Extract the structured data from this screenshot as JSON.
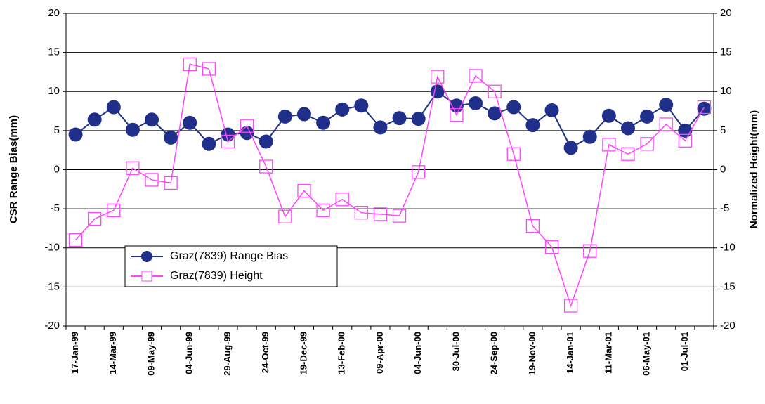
{
  "chart_data": {
    "type": "line",
    "y_label": "CSR Range Bias(mm)",
    "y2_label": "Normalized Height(mm)",
    "categories": [
      "17-Jan-99",
      null,
      "14-Mar-99",
      null,
      "09-May-99",
      null,
      "04-Jun-99",
      null,
      "29-Aug-99",
      null,
      "24-Oct-99",
      null,
      "19-Dec-99",
      null,
      "13-Feb-00",
      null,
      "09-Apr-00",
      null,
      "04-Jun-00",
      null,
      "30-Jul-00",
      null,
      "24-Sep-00",
      null,
      "19-Nov-00",
      null,
      "14-Jan-01",
      null,
      "11-Mar-01",
      null,
      "06-May-01",
      null,
      "01-Jul-01",
      null
    ],
    "series": [
      {
        "name": "Graz(7839) Range Bias",
        "color": "#1f2f8a",
        "marker": "circle",
        "values": [
          4.5,
          6.4,
          8.0,
          5.1,
          6.4,
          4.1,
          6.0,
          3.3,
          4.5,
          4.7,
          3.6,
          6.8,
          7.1,
          6.0,
          7.7,
          8.2,
          5.4,
          6.6,
          6.5,
          10.0,
          8.2,
          8.5,
          7.2,
          8.0,
          5.7,
          7.6,
          2.8,
          4.2,
          6.9,
          5.3,
          6.8,
          8.3,
          5.0,
          7.8
        ]
      },
      {
        "name": "Graz(7839) Height",
        "color": "#ff44ff",
        "marker": "square",
        "axis": "y2",
        "values": [
          -9.0,
          -6.3,
          -5.2,
          0.2,
          -1.3,
          -1.7,
          13.5,
          12.9,
          3.6,
          5.6,
          0.4,
          -6.0,
          -2.7,
          -5.2,
          -3.8,
          -5.5,
          -5.7,
          -5.9,
          -0.3,
          11.9,
          7.0,
          12.0,
          10.0,
          2.0,
          -7.2,
          -9.9,
          -17.4,
          -10.4,
          3.2,
          2.0,
          3.3,
          5.8,
          3.7,
          8.0
        ]
      }
    ],
    "ylim": [
      -20,
      20
    ],
    "yticks": [
      -20,
      -15,
      -10,
      -5,
      0,
      5,
      10,
      15,
      20
    ],
    "y2lim": [
      -20,
      20
    ],
    "y2ticks": [
      -20,
      -15,
      -10,
      -5,
      0,
      5,
      10,
      15,
      20
    ],
    "grid": true
  }
}
